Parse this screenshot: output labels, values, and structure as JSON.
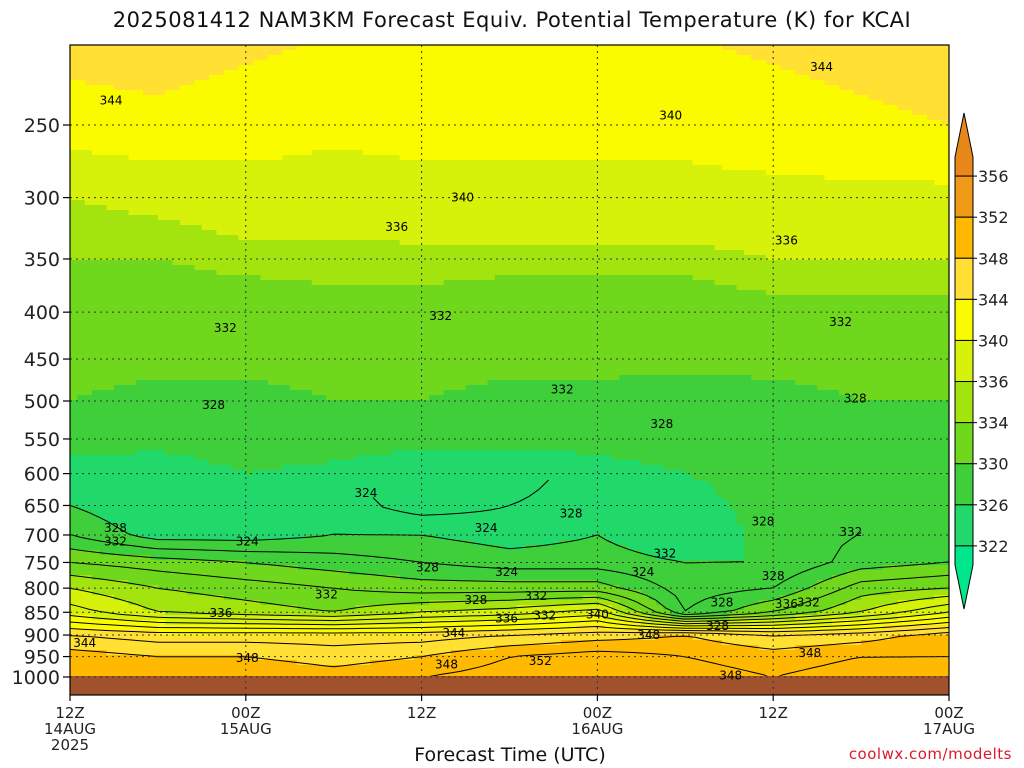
{
  "chart_data": {
    "type": "heatmap",
    "title": "2025081412  NAM3KM Forecast Equiv. Potential Temperature (K) for KCAI",
    "xlabel": "Forecast Time (UTC)",
    "ylabel": "",
    "y_scale": "log",
    "ylim": [
      1000,
      200
    ],
    "y_ticks": [
      250,
      300,
      350,
      400,
      450,
      500,
      550,
      600,
      650,
      700,
      750,
      800,
      850,
      900,
      950,
      1000
    ],
    "x_ticks": [
      {
        "hour": 0,
        "line1": "12Z",
        "line2": "14AUG",
        "line3": "2025"
      },
      {
        "hour": 12,
        "line1": "00Z",
        "line2": "15AUG",
        "line3": ""
      },
      {
        "hour": 24,
        "line1": "12Z",
        "line2": "",
        "line3": ""
      },
      {
        "hour": 36,
        "line1": "00Z",
        "line2": "16AUG",
        "line3": ""
      },
      {
        "hour": 48,
        "line1": "12Z",
        "line2": "",
        "line3": ""
      },
      {
        "hour": 60,
        "line1": "00Z",
        "line2": "17AUG",
        "line3": ""
      }
    ],
    "xlim": [
      0,
      60
    ],
    "grid": true,
    "colorbar": {
      "levels": [
        322,
        326,
        330,
        334,
        336,
        340,
        344,
        348,
        352,
        356
      ],
      "colors": [
        "#00e68a",
        "#21d96a",
        "#3fcf3a",
        "#70d81c",
        "#a3e40f",
        "#d6f20a",
        "#fbfb00",
        "#ffe033",
        "#ffb900",
        "#f09a18",
        "#e8881a"
      ]
    },
    "theta_e_profiles": [
      {
        "hour": 0,
        "values": [
          [
            1000,
            350
          ],
          [
            950,
            349
          ],
          [
            900,
            346
          ],
          [
            850,
            339
          ],
          [
            800,
            336
          ],
          [
            750,
            332
          ],
          [
            700,
            328
          ],
          [
            650,
            326
          ],
          [
            600,
            324
          ],
          [
            550,
            328
          ],
          [
            500,
            330
          ],
          [
            450,
            331
          ],
          [
            400,
            332
          ],
          [
            350,
            334
          ],
          [
            300,
            336
          ],
          [
            250,
            342
          ],
          [
            200,
            346
          ]
        ]
      },
      {
        "hour": 6,
        "values": [
          [
            1000,
            350
          ],
          [
            950,
            348
          ],
          [
            900,
            345
          ],
          [
            850,
            336
          ],
          [
            800,
            334
          ],
          [
            750,
            331
          ],
          [
            700,
            325
          ],
          [
            650,
            324
          ],
          [
            600,
            324
          ],
          [
            550,
            327
          ],
          [
            500,
            329
          ],
          [
            450,
            331
          ],
          [
            400,
            332
          ],
          [
            350,
            334
          ],
          [
            300,
            337
          ],
          [
            250,
            343
          ],
          [
            200,
            346
          ]
        ]
      },
      {
        "hour": 12,
        "values": [
          [
            1000,
            350
          ],
          [
            950,
            348
          ],
          [
            900,
            345
          ],
          [
            850,
            335
          ],
          [
            800,
            333
          ],
          [
            750,
            330
          ],
          [
            700,
            325
          ],
          [
            650,
            325
          ],
          [
            600,
            326
          ],
          [
            550,
            328
          ],
          [
            500,
            329
          ],
          [
            450,
            331
          ],
          [
            400,
            332
          ],
          [
            350,
            335
          ],
          [
            300,
            338
          ],
          [
            250,
            342
          ],
          [
            200,
            345
          ]
        ]
      },
      {
        "hour": 18,
        "values": [
          [
            1000,
            349
          ],
          [
            950,
            347
          ],
          [
            900,
            345
          ],
          [
            850,
            334
          ],
          [
            800,
            332
          ],
          [
            750,
            329
          ],
          [
            700,
            326
          ],
          [
            650,
            325
          ],
          [
            600,
            325
          ],
          [
            550,
            328
          ],
          [
            500,
            330
          ],
          [
            450,
            331
          ],
          [
            400,
            333
          ],
          [
            350,
            335
          ],
          [
            300,
            338
          ],
          [
            250,
            341
          ],
          [
            200,
            344
          ]
        ]
      },
      {
        "hour": 24,
        "values": [
          [
            1000,
            350
          ],
          [
            950,
            348
          ],
          [
            900,
            345
          ],
          [
            850,
            336
          ],
          [
            800,
            331
          ],
          [
            750,
            328
          ],
          [
            700,
            326
          ],
          [
            650,
            323
          ],
          [
            600,
            322
          ],
          [
            550,
            328
          ],
          [
            500,
            330
          ],
          [
            450,
            331
          ],
          [
            400,
            333
          ],
          [
            350,
            335
          ],
          [
            300,
            339
          ],
          [
            250,
            341
          ],
          [
            200,
            343
          ]
        ]
      },
      {
        "hour": 30,
        "values": [
          [
            1000,
            351
          ],
          [
            950,
            350
          ],
          [
            900,
            346
          ],
          [
            850,
            337
          ],
          [
            800,
            331
          ],
          [
            750,
            327
          ],
          [
            700,
            325
          ],
          [
            650,
            324
          ],
          [
            600,
            323
          ],
          [
            550,
            327
          ],
          [
            500,
            329
          ],
          [
            450,
            331
          ],
          [
            400,
            332
          ],
          [
            350,
            335
          ],
          [
            300,
            339
          ],
          [
            250,
            341
          ],
          [
            200,
            343
          ]
        ]
      },
      {
        "hour": 36,
        "values": [
          [
            1000,
            352
          ],
          [
            950,
            351
          ],
          [
            900,
            347
          ],
          [
            850,
            339
          ],
          [
            800,
            331
          ],
          [
            750,
            327
          ],
          [
            700,
            326
          ],
          [
            650,
            325
          ],
          [
            600,
            325
          ],
          [
            550,
            327
          ],
          [
            500,
            329
          ],
          [
            450,
            331
          ],
          [
            400,
            332
          ],
          [
            350,
            335
          ],
          [
            300,
            339
          ],
          [
            250,
            341
          ],
          [
            200,
            343
          ]
        ]
      },
      {
        "hour": 42,
        "values": [
          [
            1000,
            351
          ],
          [
            950,
            350
          ],
          [
            900,
            348
          ],
          [
            850,
            328
          ],
          [
            800,
            327
          ],
          [
            750,
            326
          ],
          [
            700,
            324
          ],
          [
            650,
            325
          ],
          [
            600,
            326
          ],
          [
            550,
            327
          ],
          [
            500,
            328
          ],
          [
            450,
            331
          ],
          [
            400,
            332
          ],
          [
            350,
            335
          ],
          [
            300,
            339
          ],
          [
            250,
            341
          ],
          [
            200,
            344
          ]
        ]
      },
      {
        "hour": 48,
        "values": [
          [
            1000,
            350
          ],
          [
            950,
            349
          ],
          [
            900,
            346
          ],
          [
            850,
            332
          ],
          [
            800,
            328
          ],
          [
            750,
            326
          ],
          [
            700,
            327
          ],
          [
            650,
            327
          ],
          [
            600,
            327
          ],
          [
            550,
            328
          ],
          [
            500,
            329
          ],
          [
            450,
            331
          ],
          [
            400,
            333
          ],
          [
            350,
            336
          ],
          [
            300,
            339
          ],
          [
            250,
            342
          ],
          [
            200,
            345
          ]
        ]
      },
      {
        "hour": 54,
        "values": [
          [
            1000,
            351
          ],
          [
            950,
            350
          ],
          [
            900,
            347
          ],
          [
            850,
            336
          ],
          [
            800,
            333
          ],
          [
            750,
            329
          ],
          [
            700,
            328
          ],
          [
            650,
            328
          ],
          [
            600,
            328
          ],
          [
            550,
            329
          ],
          [
            500,
            330
          ],
          [
            450,
            331
          ],
          [
            400,
            333
          ],
          [
            350,
            336
          ],
          [
            300,
            339
          ],
          [
            250,
            343
          ],
          [
            200,
            346
          ]
        ]
      },
      {
        "hour": 60,
        "values": [
          [
            1000,
            351
          ],
          [
            950,
            350
          ],
          [
            900,
            349
          ],
          [
            850,
            340
          ],
          [
            800,
            334
          ],
          [
            750,
            330
          ],
          [
            700,
            329
          ],
          [
            650,
            329
          ],
          [
            600,
            328
          ],
          [
            550,
            329
          ],
          [
            500,
            330
          ],
          [
            450,
            331
          ],
          [
            400,
            333
          ],
          [
            350,
            336
          ],
          [
            300,
            339
          ],
          [
            250,
            344
          ],
          [
            200,
            347
          ]
        ]
      }
    ],
    "contour_labels": [
      {
        "text": "344",
        "hour": 2.8,
        "p": 235
      },
      {
        "text": "344",
        "hour": 51.3,
        "p": 216
      },
      {
        "text": "340",
        "hour": 41,
        "p": 244
      },
      {
        "text": "340",
        "hour": 26.8,
        "p": 300
      },
      {
        "text": "336",
        "hour": 22.3,
        "p": 323
      },
      {
        "text": "336",
        "hour": 48.9,
        "p": 334
      },
      {
        "text": "332",
        "hour": 10.6,
        "p": 416
      },
      {
        "text": "332",
        "hour": 25.3,
        "p": 404
      },
      {
        "text": "332",
        "hour": 52.6,
        "p": 410
      },
      {
        "text": "332",
        "hour": 33.6,
        "p": 486
      },
      {
        "text": "328",
        "hour": 9.8,
        "p": 505
      },
      {
        "text": "328",
        "hour": 40.4,
        "p": 530
      },
      {
        "text": "328",
        "hour": 53.6,
        "p": 497
      },
      {
        "text": "324",
        "hour": 20.2,
        "p": 630
      },
      {
        "text": "328",
        "hour": 3.1,
        "p": 688
      },
      {
        "text": "332",
        "hour": 3.1,
        "p": 712
      },
      {
        "text": "324",
        "hour": 12.1,
        "p": 712
      },
      {
        "text": "324",
        "hour": 28.4,
        "p": 688
      },
      {
        "text": "328",
        "hour": 34.2,
        "p": 663
      },
      {
        "text": "328",
        "hour": 47.3,
        "p": 677
      },
      {
        "text": "332",
        "hour": 53.3,
        "p": 695
      },
      {
        "text": "332",
        "hour": 40.6,
        "p": 733
      },
      {
        "text": "328",
        "hour": 24.4,
        "p": 760
      },
      {
        "text": "324",
        "hour": 29.8,
        "p": 768
      },
      {
        "text": "324",
        "hour": 39.1,
        "p": 768
      },
      {
        "text": "328",
        "hour": 48,
        "p": 776
      },
      {
        "text": "332",
        "hour": 17.5,
        "p": 813
      },
      {
        "text": "328",
        "hour": 27.7,
        "p": 824
      },
      {
        "text": "332",
        "hour": 31.8,
        "p": 816
      },
      {
        "text": "336",
        "hour": 10.3,
        "p": 852
      },
      {
        "text": "336",
        "hour": 29.8,
        "p": 863
      },
      {
        "text": "332",
        "hour": 32.4,
        "p": 857
      },
      {
        "text": "340",
        "hour": 36,
        "p": 855
      },
      {
        "text": "328",
        "hour": 44.2,
        "p": 880
      },
      {
        "text": "328",
        "hour": 44.5,
        "p": 829
      },
      {
        "text": "336",
        "hour": 48.9,
        "p": 832
      },
      {
        "text": "332",
        "hour": 50.4,
        "p": 829
      },
      {
        "text": "344",
        "hour": 1,
        "p": 918
      },
      {
        "text": "344",
        "hour": 26.2,
        "p": 895
      },
      {
        "text": "348",
        "hour": 39.5,
        "p": 900
      },
      {
        "text": "348",
        "hour": 12.1,
        "p": 953
      },
      {
        "text": "348",
        "hour": 25.7,
        "p": 969
      },
      {
        "text": "352",
        "hour": 32.1,
        "p": 961
      },
      {
        "text": "348",
        "hour": 50.5,
        "p": 942
      },
      {
        "text": "348",
        "hour": 45.1,
        "p": 996
      }
    ]
  },
  "footer": {
    "credit": "coolwx.com/modelts"
  }
}
